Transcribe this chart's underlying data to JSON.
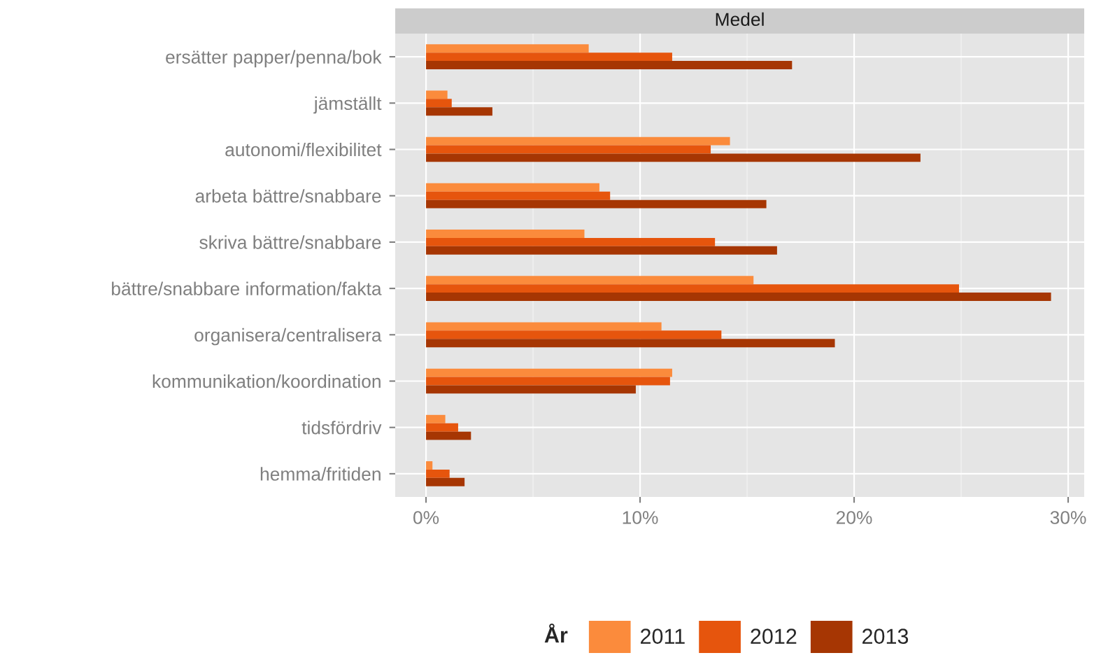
{
  "chart_data": {
    "type": "bar",
    "orientation": "horizontal",
    "title": "Medel",
    "legend_title": "År",
    "legend": "bottom",
    "grid": true,
    "categories": [
      "ersätter papper/penna/bok",
      "jämställt",
      "autonomi/flexibilitet",
      "arbeta bättre/snabbare",
      "skriva bättre/snabbare",
      "bättre/snabbare information/fakta",
      "organisera/centralisera",
      "kommunikation/koordination",
      "tidsfördriv",
      "hemma/fritiden"
    ],
    "series": [
      {
        "name": "2011",
        "color": "#fb8b3c",
        "values": [
          7.6,
          1.0,
          14.2,
          8.1,
          7.4,
          15.3,
          11.0,
          11.5,
          0.9,
          0.3
        ]
      },
      {
        "name": "2012",
        "color": "#e6550d",
        "values": [
          11.5,
          1.2,
          13.3,
          8.6,
          13.5,
          24.9,
          13.8,
          11.4,
          1.5,
          1.1
        ]
      },
      {
        "name": "2013",
        "color": "#a63603",
        "values": [
          17.1,
          3.1,
          23.1,
          15.9,
          16.4,
          29.2,
          19.1,
          9.8,
          2.1,
          1.8
        ]
      }
    ],
    "xlim": [
      -1.44,
      30.75
    ],
    "xticks": [
      {
        "value": 0,
        "label": "0%"
      },
      {
        "value": 10,
        "label": "10%"
      },
      {
        "value": 20,
        "label": "20%"
      },
      {
        "value": 30,
        "label": "30%"
      }
    ]
  }
}
